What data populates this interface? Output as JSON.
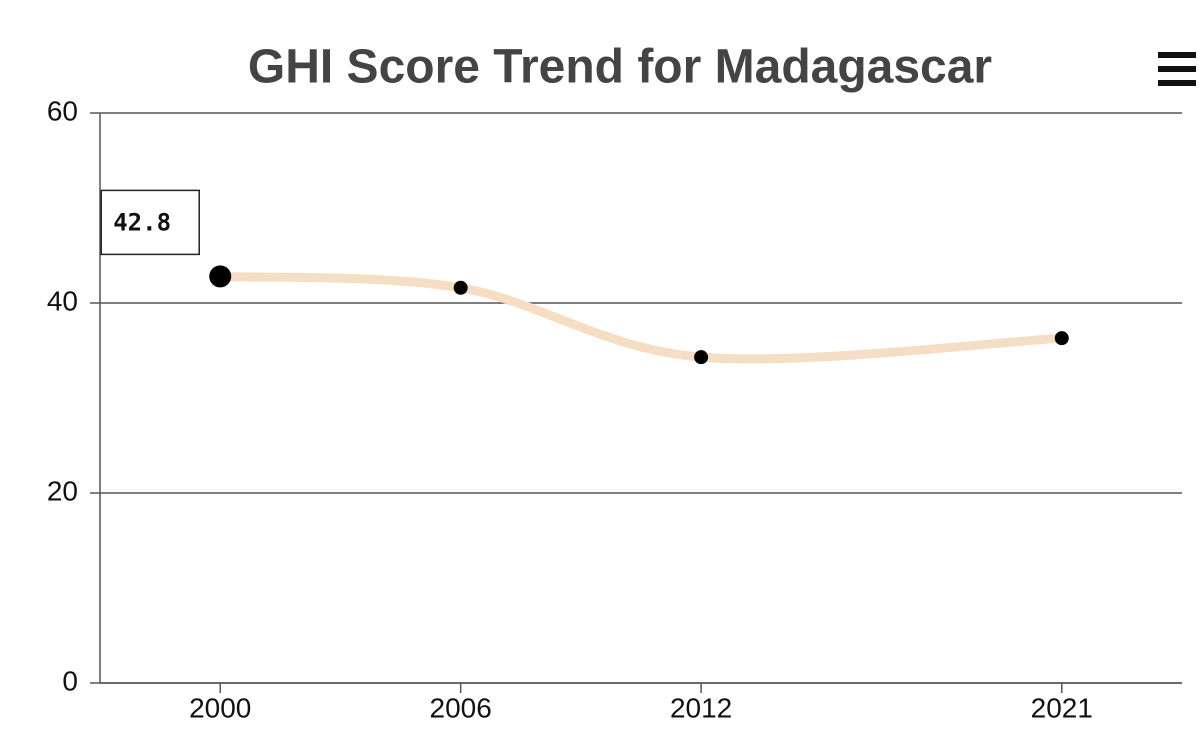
{
  "chart_data": {
    "type": "line",
    "title": "GHI Score Trend for Madagascar",
    "x": [
      2000,
      2006,
      2012,
      2021
    ],
    "values": [
      42.8,
      41.6,
      34.3,
      36.3
    ],
    "color": "#f6dec4",
    "xlim": [
      1997,
      2024
    ],
    "xticks": [
      2000,
      2006,
      2012,
      2021
    ],
    "ylim": [
      0,
      60
    ],
    "yticks": [
      0,
      20,
      40,
      60
    ],
    "grid": true
  }
}
